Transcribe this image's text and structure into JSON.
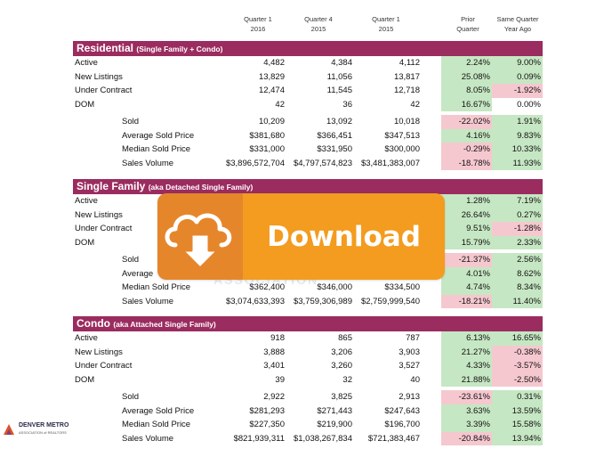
{
  "header": {
    "col1": {
      "line1": "Quarter 1",
      "line2": "2016"
    },
    "col2": {
      "line1": "Quarter 4",
      "line2": "2015"
    },
    "col3": {
      "line1": "Quarter 1",
      "line2": "2015"
    },
    "col4": {
      "line1": "Prior",
      "line2": "Quarter"
    },
    "col5": {
      "line1": "Same Quarter",
      "line2": "Year Ago"
    }
  },
  "sections": [
    {
      "title": "Residential",
      "subtitle": "(Single Family + Condo)",
      "rows": [
        {
          "label": "Active",
          "q1_2016": "4,482",
          "q4_2015": "4,384",
          "q1_2015": "4,112",
          "prior_quarter": "2.24%",
          "year_ago": "9.00%"
        },
        {
          "label": "New Listings",
          "q1_2016": "13,829",
          "q4_2015": "11,056",
          "q1_2015": "13,817",
          "prior_quarter": "25.08%",
          "year_ago": "0.09%"
        },
        {
          "label": "Under Contract",
          "q1_2016": "12,474",
          "q4_2015": "11,545",
          "q1_2015": "12,718",
          "prior_quarter": "8.05%",
          "year_ago": "-1.92%"
        },
        {
          "label": "DOM",
          "q1_2016": "42",
          "q4_2015": "36",
          "q1_2015": "42",
          "prior_quarter": "16.67%",
          "year_ago": "0.00%"
        },
        {
          "label": "Sold",
          "q1_2016": "10,209",
          "q4_2015": "13,092",
          "q1_2015": "10,018",
          "prior_quarter": "-22.02%",
          "year_ago": "1.91%"
        },
        {
          "label": "Average Sold Price",
          "q1_2016": "$381,680",
          "q4_2015": "$366,451",
          "q1_2015": "$347,513",
          "prior_quarter": "4.16%",
          "year_ago": "9.83%"
        },
        {
          "label": "Median Sold Price",
          "q1_2016": "$331,000",
          "q4_2015": "$331,950",
          "q1_2015": "$300,000",
          "prior_quarter": "-0.29%",
          "year_ago": "10.33%"
        },
        {
          "label": "Sales Volume",
          "q1_2016": "$3,896,572,704",
          "q4_2015": "$4,797,574,823",
          "q1_2015": "$3,481,383,007",
          "prior_quarter": "-18.78%",
          "year_ago": "11.93%"
        }
      ]
    },
    {
      "title": "Single Family",
      "subtitle": "(aka Detached Single Family)",
      "rows": [
        {
          "label": "Active",
          "q1_2016": "",
          "q4_2015": "",
          "q1_2015": "",
          "prior_quarter": "1.28%",
          "year_ago": "7.19%"
        },
        {
          "label": "New Listings",
          "q1_2016": "",
          "q4_2015": "",
          "q1_2015": "",
          "prior_quarter": "26.64%",
          "year_ago": "0.27%"
        },
        {
          "label": "Under Contract",
          "q1_2016": "",
          "q4_2015": "",
          "q1_2015": "",
          "prior_quarter": "9.51%",
          "year_ago": "-1.28%"
        },
        {
          "label": "DOM",
          "q1_2016": "",
          "q4_2015": "",
          "q1_2015": "",
          "prior_quarter": "15.79%",
          "year_ago": "2.33%"
        },
        {
          "label": "Sold",
          "q1_2016": "",
          "q4_2015": "",
          "q1_2015": "",
          "prior_quarter": "-21.37%",
          "year_ago": "2.56%"
        },
        {
          "label": "Average",
          "q1_2016": "",
          "q4_2015": "",
          "q1_2015": "",
          "prior_quarter": "4.01%",
          "year_ago": "8.62%"
        },
        {
          "label": "Median Sold Price",
          "q1_2016": "$362,400",
          "q4_2015": "$346,000",
          "q1_2015": "$334,500",
          "prior_quarter": "4.74%",
          "year_ago": "8.34%"
        },
        {
          "label": "Sales Volume",
          "q1_2016": "$3,074,633,393",
          "q4_2015": "$3,759,306,989",
          "q1_2015": "$2,759,999,540",
          "prior_quarter": "-18.21%",
          "year_ago": "11.40%"
        }
      ]
    },
    {
      "title": "Condo",
      "subtitle": "(aka Attached Single Family)",
      "rows": [
        {
          "label": "Active",
          "q1_2016": "918",
          "q4_2015": "865",
          "q1_2015": "787",
          "prior_quarter": "6.13%",
          "year_ago": "16.65%"
        },
        {
          "label": "New Listings",
          "q1_2016": "3,888",
          "q4_2015": "3,206",
          "q1_2015": "3,903",
          "prior_quarter": "21.27%",
          "year_ago": "-0.38%"
        },
        {
          "label": "Under Contract",
          "q1_2016": "3,401",
          "q4_2015": "3,260",
          "q1_2015": "3,527",
          "prior_quarter": "4.33%",
          "year_ago": "-3.57%"
        },
        {
          "label": "DOM",
          "q1_2016": "39",
          "q4_2015": "32",
          "q1_2015": "40",
          "prior_quarter": "21.88%",
          "year_ago": "-2.50%"
        },
        {
          "label": "Sold",
          "q1_2016": "2,922",
          "q4_2015": "3,825",
          "q1_2015": "2,913",
          "prior_quarter": "-23.61%",
          "year_ago": "0.31%"
        },
        {
          "label": "Average Sold Price",
          "q1_2016": "$281,293",
          "q4_2015": "$271,443",
          "q1_2015": "$247,643",
          "prior_quarter": "3.63%",
          "year_ago": "13.59%"
        },
        {
          "label": "Median Sold Price",
          "q1_2016": "$227,350",
          "q4_2015": "$219,900",
          "q1_2015": "$196,700",
          "prior_quarter": "3.39%",
          "year_ago": "15.58%"
        },
        {
          "label": "Sales Volume",
          "q1_2016": "$821,939,311",
          "q4_2015": "$1,038,267,834",
          "q1_2015": "$721,383,467",
          "prior_quarter": "-20.84%",
          "year_ago": "13.94%"
        }
      ]
    }
  ],
  "download_button": {
    "label": "Download",
    "icon": "cloud-download-icon"
  },
  "watermark": "ASSOCIATION",
  "logo": {
    "name": "DENVER METRO",
    "tagline": "ASSOCIATION of REALTORS"
  },
  "colors": {
    "section_header": "#9b2c5f",
    "positive": "#c6e7c3",
    "negative": "#f5c8cf",
    "download_orange": "#f39c1f",
    "download_icon_bg": "#e6862a"
  }
}
